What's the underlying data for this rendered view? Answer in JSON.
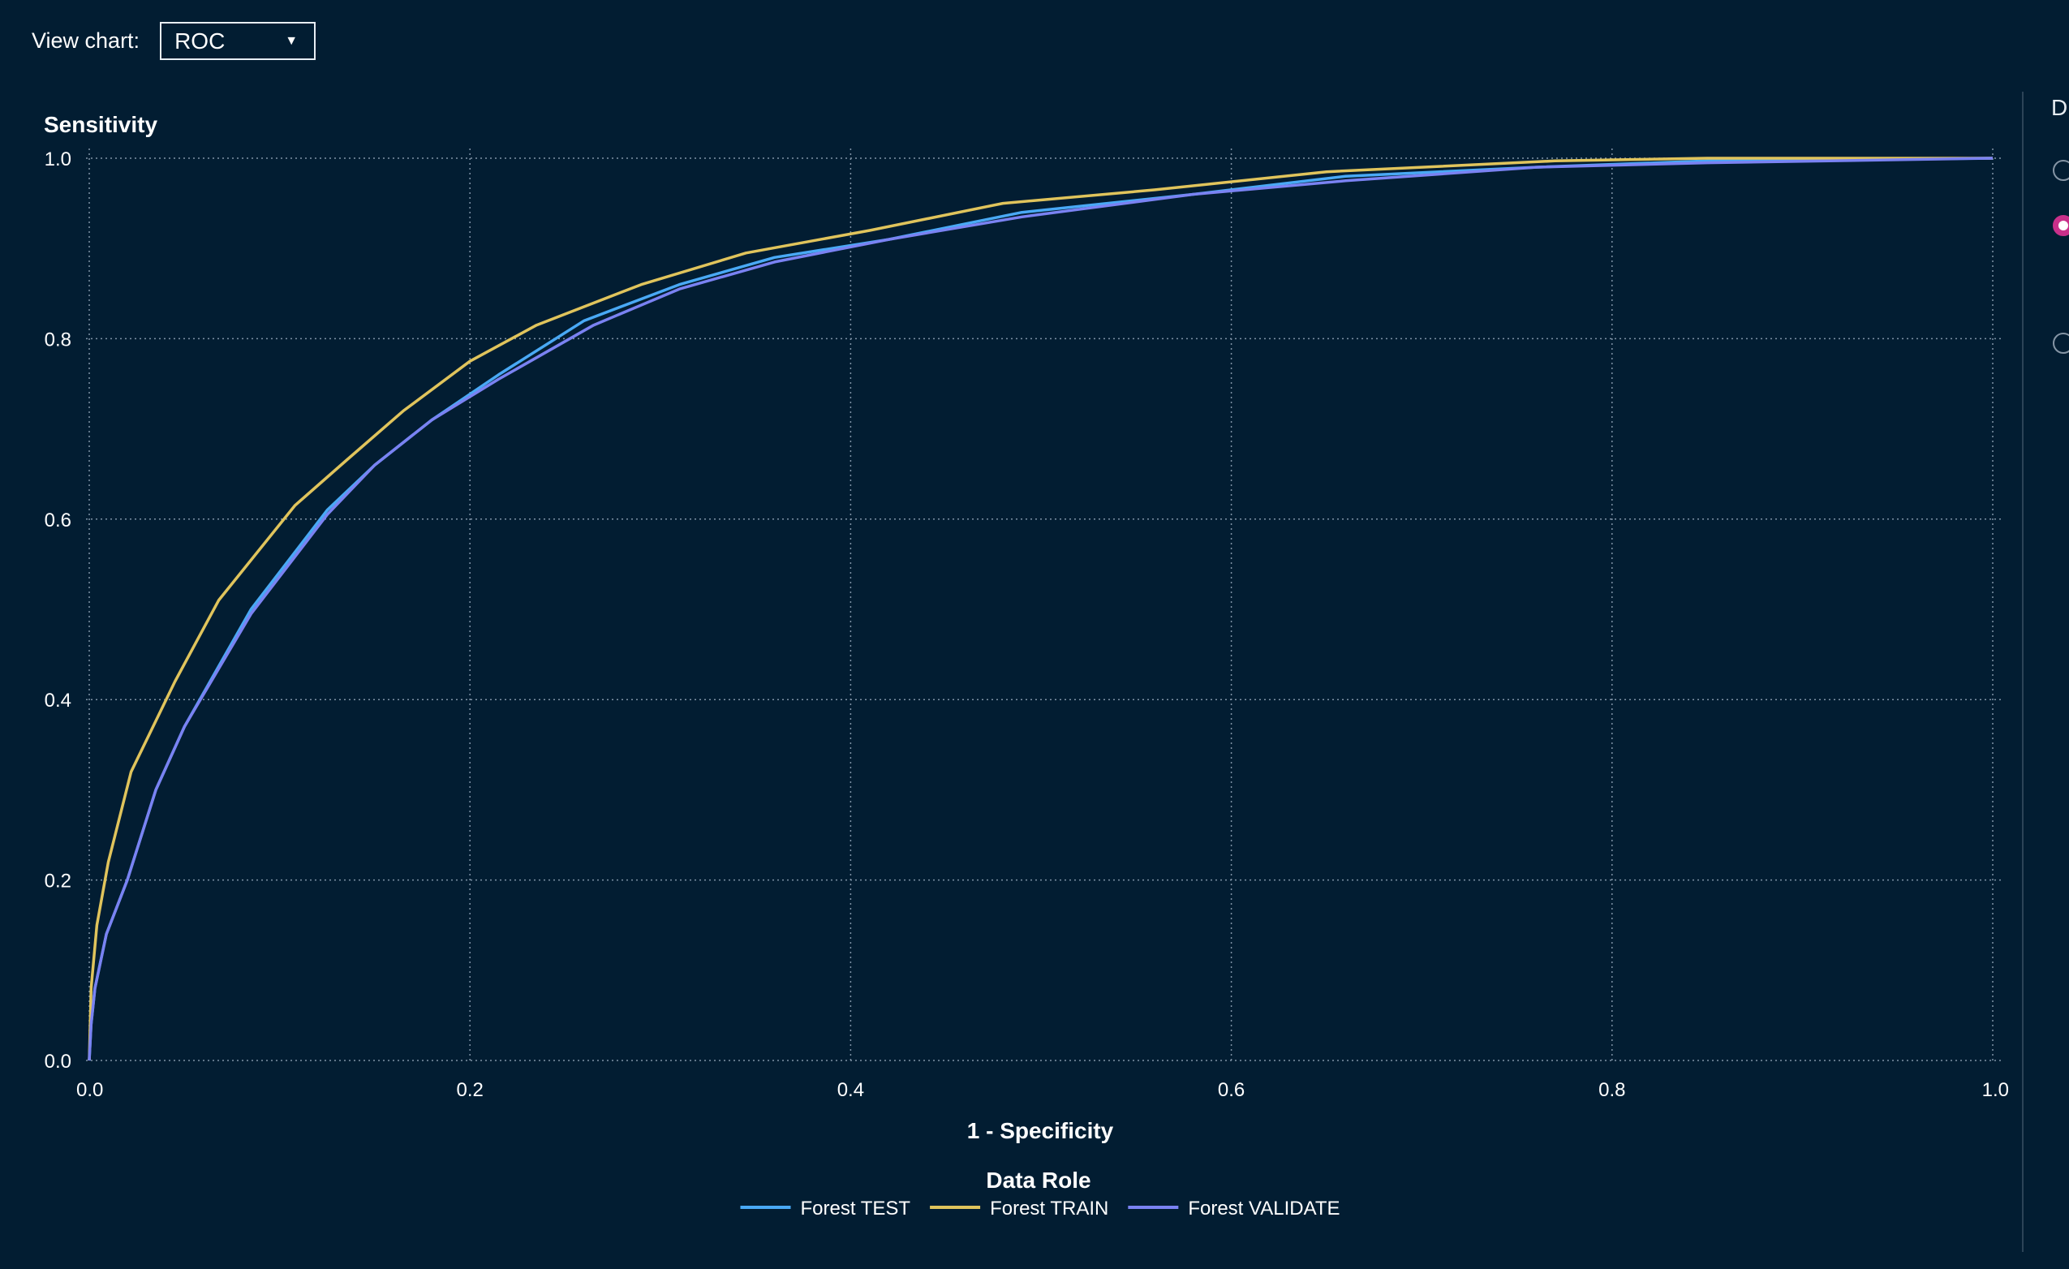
{
  "toolbar": {
    "view_chart_label": "View chart:",
    "chart_select_value": "ROC"
  },
  "right_panel": {
    "title": "D",
    "options": [
      {
        "selected": false
      },
      {
        "selected": true
      },
      {
        "selected": false
      }
    ]
  },
  "colors": {
    "background": "#021d32",
    "grid": "#7f93a6",
    "test": "#49a9f5",
    "train": "#e0c45c",
    "validate": "#7a82f2",
    "radio_selected": "#c9308a"
  },
  "chart_data": {
    "type": "line",
    "title": "",
    "xlabel": "1 - Specificity",
    "ylabel": "Sensitivity",
    "xlim": [
      0,
      1
    ],
    "ylim": [
      0,
      1
    ],
    "xticks": [
      "0.0",
      "0.2",
      "0.4",
      "0.6",
      "0.8",
      "1.0"
    ],
    "yticks": [
      "0.0",
      "0.2",
      "0.4",
      "0.6",
      "0.8",
      "1.0"
    ],
    "grid": true,
    "legend": {
      "title": "Data Role",
      "position": "bottom-center"
    },
    "series": [
      {
        "name": "Forest TEST",
        "color": "#49a9f5",
        "points": [
          [
            0,
            0
          ],
          [
            0.001,
            0.04
          ],
          [
            0.003,
            0.08
          ],
          [
            0.009,
            0.14
          ],
          [
            0.02,
            0.2
          ],
          [
            0.035,
            0.3
          ],
          [
            0.05,
            0.37
          ],
          [
            0.085,
            0.5
          ],
          [
            0.125,
            0.61
          ],
          [
            0.15,
            0.66
          ],
          [
            0.18,
            0.71
          ],
          [
            0.215,
            0.76
          ],
          [
            0.26,
            0.82
          ],
          [
            0.31,
            0.86
          ],
          [
            0.36,
            0.89
          ],
          [
            0.42,
            0.91
          ],
          [
            0.49,
            0.94
          ],
          [
            0.58,
            0.96
          ],
          [
            0.66,
            0.98
          ],
          [
            0.76,
            0.99
          ],
          [
            0.85,
            0.997
          ],
          [
            1,
            1
          ]
        ]
      },
      {
        "name": "Forest TRAIN",
        "color": "#e0c45c",
        "points": [
          [
            0,
            0
          ],
          [
            0.001,
            0.08
          ],
          [
            0.004,
            0.15
          ],
          [
            0.01,
            0.22
          ],
          [
            0.022,
            0.32
          ],
          [
            0.045,
            0.42
          ],
          [
            0.068,
            0.51
          ],
          [
            0.108,
            0.615
          ],
          [
            0.135,
            0.665
          ],
          [
            0.165,
            0.72
          ],
          [
            0.2,
            0.775
          ],
          [
            0.235,
            0.815
          ],
          [
            0.29,
            0.86
          ],
          [
            0.345,
            0.895
          ],
          [
            0.41,
            0.92
          ],
          [
            0.48,
            0.95
          ],
          [
            0.56,
            0.965
          ],
          [
            0.65,
            0.985
          ],
          [
            0.77,
            0.997
          ],
          [
            0.85,
            1
          ],
          [
            1,
            1
          ]
        ]
      },
      {
        "name": "Forest VALIDATE",
        "color": "#7a82f2",
        "points": [
          [
            0,
            0
          ],
          [
            0.001,
            0.04
          ],
          [
            0.003,
            0.08
          ],
          [
            0.009,
            0.14
          ],
          [
            0.02,
            0.2
          ],
          [
            0.035,
            0.3
          ],
          [
            0.05,
            0.37
          ],
          [
            0.085,
            0.495
          ],
          [
            0.125,
            0.605
          ],
          [
            0.15,
            0.66
          ],
          [
            0.18,
            0.71
          ],
          [
            0.215,
            0.755
          ],
          [
            0.265,
            0.815
          ],
          [
            0.31,
            0.855
          ],
          [
            0.36,
            0.885
          ],
          [
            0.42,
            0.91
          ],
          [
            0.49,
            0.935
          ],
          [
            0.58,
            0.96
          ],
          [
            0.66,
            0.975
          ],
          [
            0.76,
            0.99
          ],
          [
            0.85,
            0.995
          ],
          [
            1,
            1
          ]
        ]
      }
    ]
  }
}
